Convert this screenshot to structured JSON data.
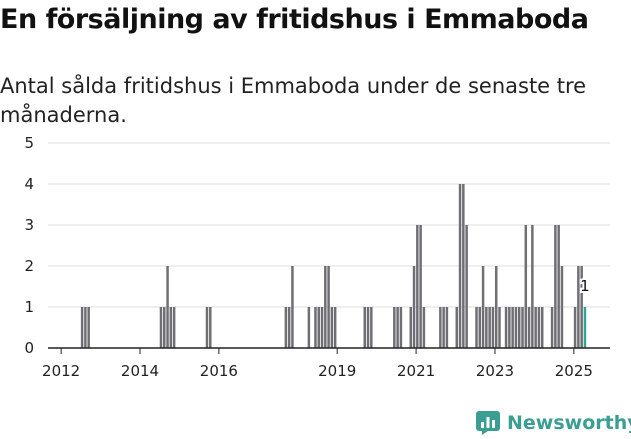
{
  "title": "En försäljning av fritidshus i Emmaboda",
  "subtitle": "Antal sålda fritidshus i Emmaboda under de senaste tre månaderna.",
  "logo": {
    "text": "Newsworthy",
    "icon": "newsworthy-bar-chart-logo-icon"
  },
  "colors": {
    "bar": "#6f6e73",
    "highlight": "#2ea597",
    "grid": "#dcdcdc",
    "axis": "#222222",
    "brand": "#3a9e93"
  },
  "chart_data": {
    "type": "bar",
    "title": "En försäljning av fritidshus i Emmaboda",
    "subtitle": "Antal sålda fritidshus i Emmaboda under de senaste tre månaderna.",
    "x_unit": "month",
    "xlim": [
      "2011-09",
      "2025-12"
    ],
    "ylim": [
      0,
      5
    ],
    "y_ticks": [
      0,
      1,
      2,
      3,
      4,
      5
    ],
    "x_ticks": [
      "2012",
      "2014",
      "2016",
      "2019",
      "2021",
      "2023",
      "2025"
    ],
    "grid": true,
    "legend": "none",
    "series": [
      {
        "values": [
          {
            "x": "2012-07",
            "y": 1
          },
          {
            "x": "2012-08",
            "y": 1
          },
          {
            "x": "2012-09",
            "y": 1
          },
          {
            "x": "2014-07",
            "y": 1
          },
          {
            "x": "2014-08",
            "y": 1
          },
          {
            "x": "2014-09",
            "y": 2
          },
          {
            "x": "2014-10",
            "y": 1
          },
          {
            "x": "2014-11",
            "y": 1
          },
          {
            "x": "2015-09",
            "y": 1
          },
          {
            "x": "2015-10",
            "y": 1
          },
          {
            "x": "2017-09",
            "y": 1
          },
          {
            "x": "2017-10",
            "y": 1
          },
          {
            "x": "2017-11",
            "y": 2
          },
          {
            "x": "2018-04",
            "y": 1
          },
          {
            "x": "2018-06",
            "y": 1
          },
          {
            "x": "2018-07",
            "y": 1
          },
          {
            "x": "2018-08",
            "y": 1
          },
          {
            "x": "2018-09",
            "y": 2
          },
          {
            "x": "2018-10",
            "y": 2
          },
          {
            "x": "2018-11",
            "y": 1
          },
          {
            "x": "2018-12",
            "y": 1
          },
          {
            "x": "2019-09",
            "y": 1
          },
          {
            "x": "2019-10",
            "y": 1
          },
          {
            "x": "2019-11",
            "y": 1
          },
          {
            "x": "2020-06",
            "y": 1
          },
          {
            "x": "2020-07",
            "y": 1
          },
          {
            "x": "2020-08",
            "y": 1
          },
          {
            "x": "2020-11",
            "y": 1
          },
          {
            "x": "2020-12",
            "y": 2
          },
          {
            "x": "2021-01",
            "y": 3
          },
          {
            "x": "2021-02",
            "y": 3
          },
          {
            "x": "2021-03",
            "y": 1
          },
          {
            "x": "2021-08",
            "y": 1
          },
          {
            "x": "2021-09",
            "y": 1
          },
          {
            "x": "2021-10",
            "y": 1
          },
          {
            "x": "2022-01",
            "y": 1
          },
          {
            "x": "2022-02",
            "y": 4
          },
          {
            "x": "2022-03",
            "y": 4
          },
          {
            "x": "2022-04",
            "y": 3
          },
          {
            "x": "2022-07",
            "y": 1
          },
          {
            "x": "2022-08",
            "y": 1
          },
          {
            "x": "2022-09",
            "y": 2
          },
          {
            "x": "2022-10",
            "y": 1
          },
          {
            "x": "2022-11",
            "y": 1
          },
          {
            "x": "2022-12",
            "y": 1
          },
          {
            "x": "2023-01",
            "y": 2
          },
          {
            "x": "2023-02",
            "y": 1
          },
          {
            "x": "2023-04",
            "y": 1
          },
          {
            "x": "2023-05",
            "y": 1
          },
          {
            "x": "2023-06",
            "y": 1
          },
          {
            "x": "2023-07",
            "y": 1
          },
          {
            "x": "2023-08",
            "y": 1
          },
          {
            "x": "2023-09",
            "y": 1
          },
          {
            "x": "2023-10",
            "y": 3
          },
          {
            "x": "2023-11",
            "y": 1
          },
          {
            "x": "2023-12",
            "y": 3
          },
          {
            "x": "2024-01",
            "y": 1
          },
          {
            "x": "2024-02",
            "y": 1
          },
          {
            "x": "2024-03",
            "y": 1
          },
          {
            "x": "2024-06",
            "y": 1
          },
          {
            "x": "2024-07",
            "y": 3
          },
          {
            "x": "2024-08",
            "y": 3
          },
          {
            "x": "2024-09",
            "y": 2
          },
          {
            "x": "2025-01",
            "y": 1
          },
          {
            "x": "2025-02",
            "y": 2
          },
          {
            "x": "2025-03",
            "y": 2
          },
          {
            "x": "2025-04",
            "y": 1
          }
        ]
      }
    ],
    "highlight": {
      "x": "2025-04",
      "y": 1,
      "label": "1"
    }
  }
}
